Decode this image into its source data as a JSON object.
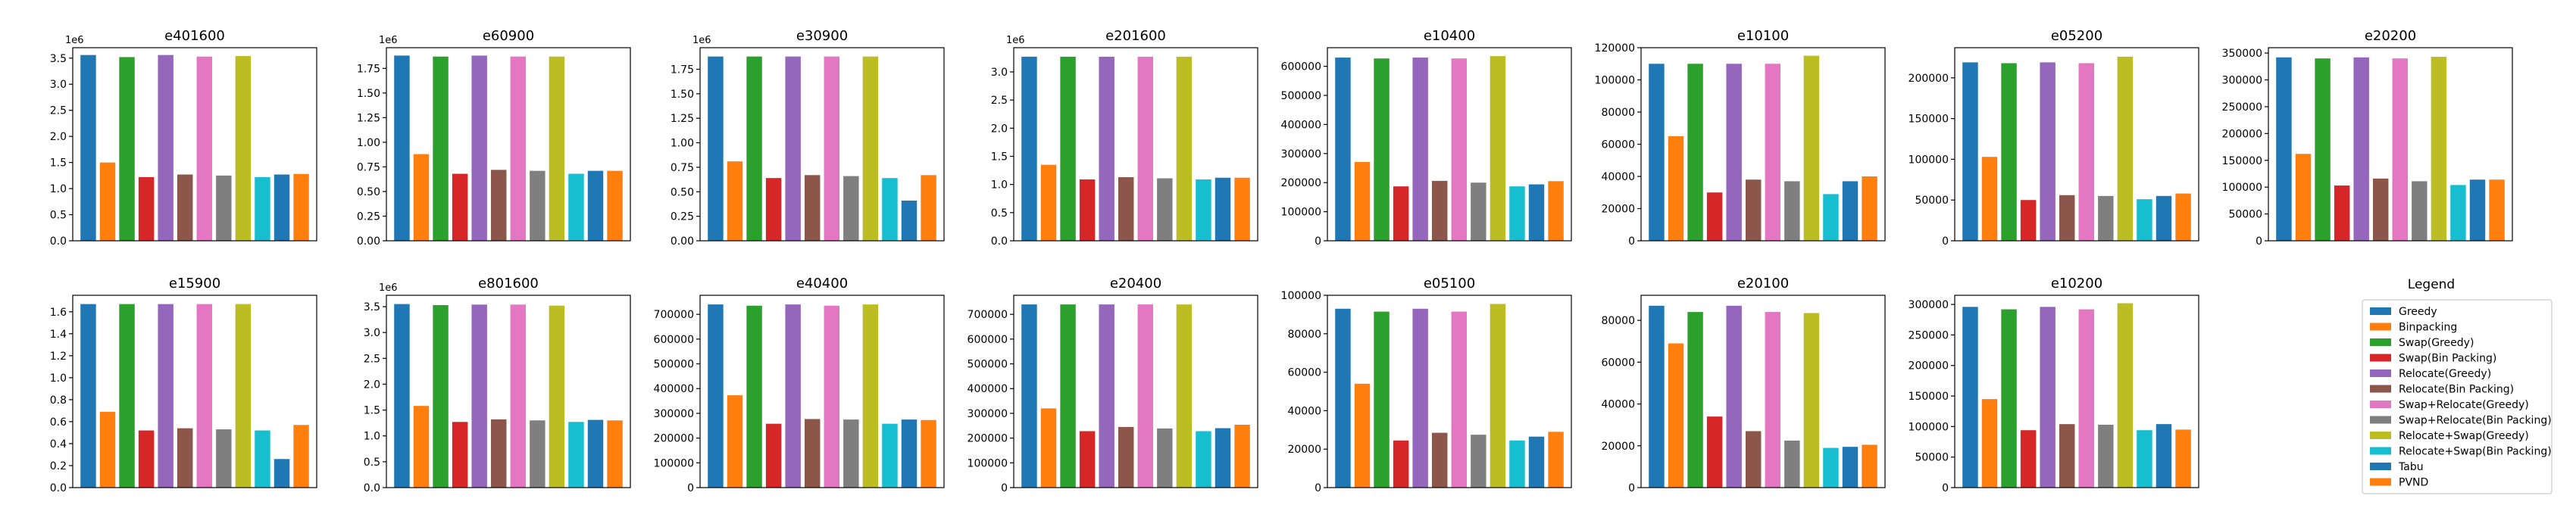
{
  "colors": [
    "#1f77b4",
    "#ff7f0e",
    "#2ca02c",
    "#d62728",
    "#9467bd",
    "#8c564b",
    "#e377c2",
    "#7f7f7f",
    "#bcbd22",
    "#17becf",
    "#1f77b4",
    "#ff7f0e"
  ],
  "legend": {
    "title": "Legend",
    "entries": [
      "Greedy",
      "Binpacking",
      "Swap(Greedy)",
      "Swap(Bin Packing)",
      "Relocate(Greedy)",
      "Relocate(Bin Packing)",
      "Swap+Relocate(Greedy)",
      "Swap+Relocate(Bin Packing)",
      "Relocate+Swap(Greedy)",
      "Relocate+Swap(Bin Packing)",
      "Tabu",
      "PVND"
    ]
  },
  "chart_data": [
    {
      "type": "bar",
      "title": "e401600",
      "multiplier": "1e6",
      "ylim": [
        0,
        3.7
      ],
      "yticks": [
        "0.0",
        "0.5",
        "1.0",
        "1.5",
        "2.0",
        "2.5",
        "3.0",
        "3.5"
      ],
      "tickvals": [
        0,
        0.5,
        1.0,
        1.5,
        2.0,
        2.5,
        3.0,
        3.5
      ],
      "values": [
        3.56,
        1.5,
        3.52,
        1.22,
        3.56,
        1.27,
        3.53,
        1.25,
        3.54,
        1.22,
        1.27,
        1.28
      ]
    },
    {
      "type": "bar",
      "title": "e60900",
      "multiplier": "1e6",
      "ylim": [
        0,
        1.96
      ],
      "yticks": [
        "0.00",
        "0.25",
        "0.50",
        "0.75",
        "1.00",
        "1.25",
        "1.50",
        "1.75"
      ],
      "tickvals": [
        0,
        0.25,
        0.5,
        0.75,
        1.0,
        1.25,
        1.5,
        1.75
      ],
      "values": [
        1.88,
        0.88,
        1.87,
        0.68,
        1.88,
        0.72,
        1.87,
        0.71,
        1.87,
        0.68,
        0.71,
        0.71
      ]
    },
    {
      "type": "bar",
      "title": "e30900",
      "multiplier": "1e6",
      "ylim": [
        0,
        1.97
      ],
      "yticks": [
        "0.00",
        "0.25",
        "0.50",
        "0.75",
        "1.00",
        "1.25",
        "1.50",
        "1.75"
      ],
      "tickvals": [
        0,
        0.25,
        0.5,
        0.75,
        1.0,
        1.25,
        1.5,
        1.75
      ],
      "values": [
        1.88,
        0.81,
        1.88,
        0.64,
        1.88,
        0.67,
        1.88,
        0.66,
        1.88,
        0.64,
        0.41,
        0.67
      ]
    },
    {
      "type": "bar",
      "title": "e201600",
      "multiplier": "1e6",
      "ylim": [
        0,
        3.43
      ],
      "yticks": [
        "0.0",
        "0.5",
        "1.0",
        "1.5",
        "2.0",
        "2.5",
        "3.0"
      ],
      "tickvals": [
        0,
        0.5,
        1.0,
        1.5,
        2.0,
        2.5,
        3.0
      ],
      "values": [
        3.27,
        1.35,
        3.27,
        1.09,
        3.27,
        1.13,
        3.27,
        1.11,
        3.27,
        1.09,
        1.12,
        1.12
      ]
    },
    {
      "type": "bar",
      "title": "e10400",
      "multiplier": "",
      "ylim": [
        0,
        664000
      ],
      "yticks": [
        "0",
        "100000",
        "200000",
        "300000",
        "400000",
        "500000",
        "600000"
      ],
      "tickvals": [
        0,
        100000,
        200000,
        300000,
        400000,
        500000,
        600000
      ],
      "values": [
        630000,
        271000,
        627000,
        187000,
        630000,
        206000,
        627000,
        200000,
        635000,
        187000,
        194000,
        205000
      ]
    },
    {
      "type": "bar",
      "title": "e10100",
      "multiplier": "",
      "ylim": [
        0,
        120000
      ],
      "yticks": [
        "0",
        "20000",
        "40000",
        "60000",
        "80000",
        "100000",
        "120000"
      ],
      "tickvals": [
        0,
        20000,
        40000,
        60000,
        80000,
        100000,
        120000
      ],
      "values": [
        110000,
        65000,
        110000,
        30000,
        110000,
        38000,
        110000,
        37000,
        115000,
        29000,
        37000,
        40000
      ]
    },
    {
      "type": "bar",
      "title": "e05200",
      "multiplier": "",
      "ylim": [
        0,
        237000
      ],
      "yticks": [
        "0",
        "50000",
        "100000",
        "150000",
        "200000"
      ],
      "tickvals": [
        0,
        50000,
        100000,
        150000,
        200000
      ],
      "values": [
        219000,
        103000,
        218000,
        50000,
        219000,
        56000,
        218000,
        55000,
        226000,
        51000,
        55000,
        58000
      ]
    },
    {
      "type": "bar",
      "title": "e20200",
      "multiplier": "",
      "ylim": [
        0,
        360000
      ],
      "yticks": [
        "0",
        "50000",
        "100000",
        "150000",
        "200000",
        "250000",
        "300000",
        "350000"
      ],
      "tickvals": [
        0,
        50000,
        100000,
        150000,
        200000,
        250000,
        300000,
        350000
      ],
      "values": [
        342000,
        162000,
        340000,
        103000,
        342000,
        116000,
        340000,
        111000,
        343000,
        104000,
        114000,
        114000
      ]
    },
    {
      "type": "bar",
      "title": "e15900",
      "multiplier": "",
      "ylim": [
        0,
        1.75
      ],
      "yticks": [
        "0.0",
        "0.2",
        "0.4",
        "0.6",
        "0.8",
        "1.0",
        "1.2",
        "1.4",
        "1.6"
      ],
      "tickvals": [
        0,
        0.2,
        0.4,
        0.6,
        0.8,
        1.0,
        1.2,
        1.4,
        1.6
      ],
      "values": [
        1.67,
        0.69,
        1.67,
        0.52,
        1.67,
        0.54,
        1.67,
        0.53,
        1.67,
        0.52,
        0.26,
        0.57
      ]
    },
    {
      "type": "bar",
      "title": "e801600",
      "multiplier": "1e6",
      "ylim": [
        0,
        3.72
      ],
      "yticks": [
        "0.0",
        "0.5",
        "1.0",
        "1.5",
        "2.0",
        "2.5",
        "3.0",
        "3.5"
      ],
      "tickvals": [
        0,
        0.5,
        1.0,
        1.5,
        2.0,
        2.5,
        3.0,
        3.5
      ],
      "values": [
        3.55,
        1.58,
        3.53,
        1.27,
        3.54,
        1.32,
        3.54,
        1.3,
        3.52,
        1.27,
        1.31,
        1.3
      ]
    },
    {
      "type": "bar",
      "title": "e40400",
      "multiplier": "",
      "ylim": [
        0,
        777000
      ],
      "yticks": [
        "0",
        "100000",
        "200000",
        "300000",
        "400000",
        "500000",
        "600000",
        "700000"
      ],
      "tickvals": [
        0,
        100000,
        200000,
        300000,
        400000,
        500000,
        600000,
        700000
      ],
      "values": [
        740000,
        373000,
        735000,
        258000,
        740000,
        277000,
        735000,
        275000,
        740000,
        258000,
        275000,
        273000
      ]
    },
    {
      "type": "bar",
      "title": "e20400",
      "multiplier": "",
      "ylim": [
        0,
        777000
      ],
      "yticks": [
        "0",
        "100000",
        "200000",
        "300000",
        "400000",
        "500000",
        "600000",
        "700000"
      ],
      "tickvals": [
        0,
        100000,
        200000,
        300000,
        400000,
        500000,
        600000,
        700000
      ],
      "values": [
        740000,
        320000,
        740000,
        228000,
        740000,
        245000,
        740000,
        239000,
        740000,
        228000,
        240000,
        254000
      ]
    },
    {
      "type": "bar",
      "title": "e05100",
      "multiplier": "",
      "ylim": [
        0,
        100000
      ],
      "yticks": [
        "0",
        "20000",
        "40000",
        "60000",
        "80000",
        "100000"
      ],
      "tickvals": [
        0,
        20000,
        40000,
        60000,
        80000,
        100000
      ],
      "values": [
        93000,
        54000,
        91500,
        24500,
        93000,
        28500,
        91500,
        27500,
        95500,
        24500,
        26500,
        29000
      ]
    },
    {
      "type": "bar",
      "title": "e20100",
      "multiplier": "",
      "ylim": [
        0,
        92000
      ],
      "yticks": [
        "0",
        "20000",
        "40000",
        "60000",
        "80000"
      ],
      "tickvals": [
        0,
        20000,
        40000,
        60000,
        80000
      ],
      "values": [
        87000,
        69000,
        84000,
        34000,
        87000,
        27000,
        84000,
        22500,
        83500,
        19000,
        19500,
        20500
      ]
    },
    {
      "type": "bar",
      "title": "e10200",
      "multiplier": "",
      "ylim": [
        0,
        315000
      ],
      "yticks": [
        "0",
        "50000",
        "100000",
        "150000",
        "200000",
        "250000",
        "300000"
      ],
      "tickvals": [
        0,
        50000,
        100000,
        150000,
        200000,
        250000,
        300000
      ],
      "values": [
        296000,
        145000,
        292000,
        94000,
        296000,
        104000,
        292000,
        103000,
        302000,
        94000,
        104000,
        95000
      ]
    }
  ]
}
